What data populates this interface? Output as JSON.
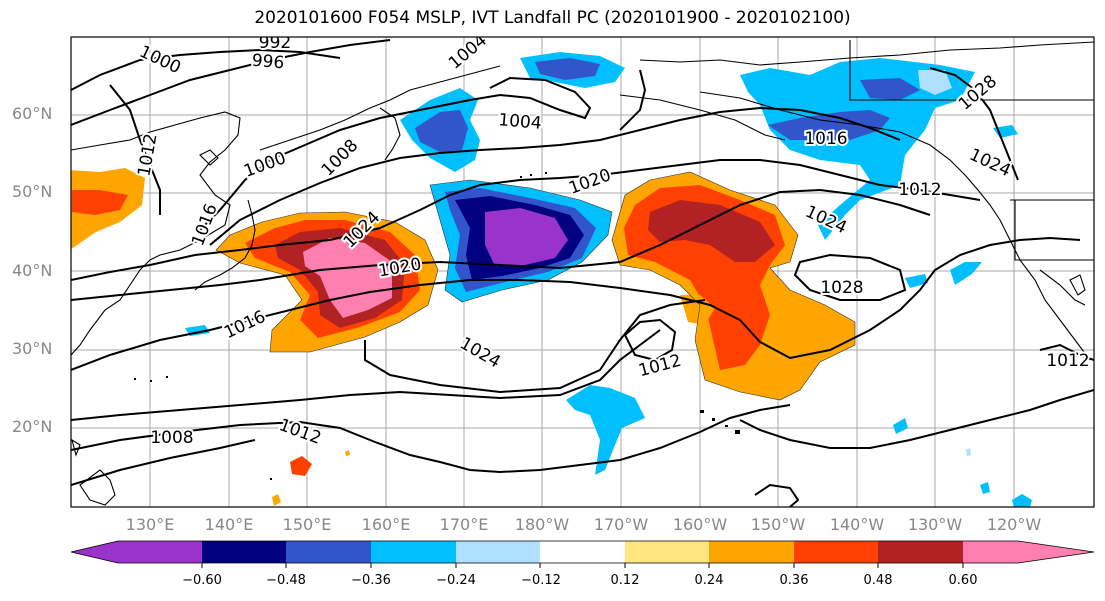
{
  "title": "2020101600 F054 MSLP, IVT Landfall PC (2020101900 - 2020102100)",
  "lat_labels": [
    "60°N",
    "50°N",
    "40°N",
    "30°N",
    "20°N"
  ],
  "lon_labels": [
    "130°E",
    "140°E",
    "150°E",
    "160°E",
    "170°E",
    "180°W",
    "170°W",
    "160°W",
    "150°W",
    "140°W",
    "130°W",
    "120°W"
  ],
  "contour_labels": [
    "1000",
    "992",
    "996",
    "1004",
    "1012",
    "1000",
    "1008",
    "1016",
    "1004",
    "1020",
    "1024",
    "1020",
    "1016",
    "1024",
    "1012",
    "1024",
    "1028",
    "1012",
    "1008",
    "1012",
    "1028",
    "1016",
    "1024",
    "1012"
  ],
  "colorbar": {
    "ticks": [
      "−0.60",
      "−0.48",
      "−0.36",
      "−0.24",
      "−0.12",
      "0.12",
      "0.24",
      "0.36",
      "0.48",
      "0.60"
    ],
    "colors": [
      "#9933cc",
      "#000080",
      "#3355cc",
      "#00bfff",
      "#b0e0ff",
      "#ffffff",
      "#ffe680",
      "#ffa500",
      "#ff4000",
      "#b22222",
      "#ff80b0"
    ]
  },
  "colors": {
    "purple": "#9933cc",
    "navy": "#000080",
    "royal": "#3355cc",
    "sky": "#00bfff",
    "yellow": "#ffe680",
    "orange": "#ffa500",
    "red": "#ff4000",
    "darkred": "#b22222",
    "pink": "#ff80b0"
  }
}
